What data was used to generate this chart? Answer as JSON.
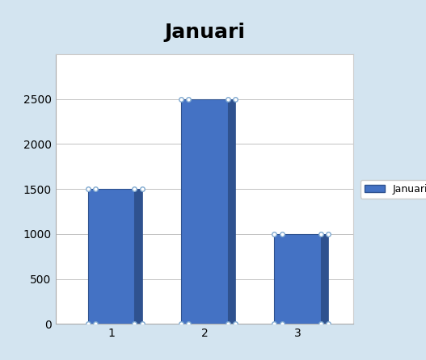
{
  "title": "Januari",
  "categories": [
    1,
    2,
    3
  ],
  "values": [
    1500,
    2500,
    1000
  ],
  "bar_color": "#4472C4",
  "bar_edge_color": "#2F528F",
  "legend_label": "Januari",
  "ylim": [
    0,
    3000
  ],
  "yticks": [
    0,
    500,
    1000,
    1500,
    2000,
    2500
  ],
  "title_fontsize": 18,
  "title_fontweight": "bold",
  "bg_color": "#FFFFFF",
  "chart_area_color": "#FFFFFF",
  "grid_color": "#AAAAAA",
  "excel_bg": "#D9E8F5",
  "outer_bg": "#EEF4FB"
}
